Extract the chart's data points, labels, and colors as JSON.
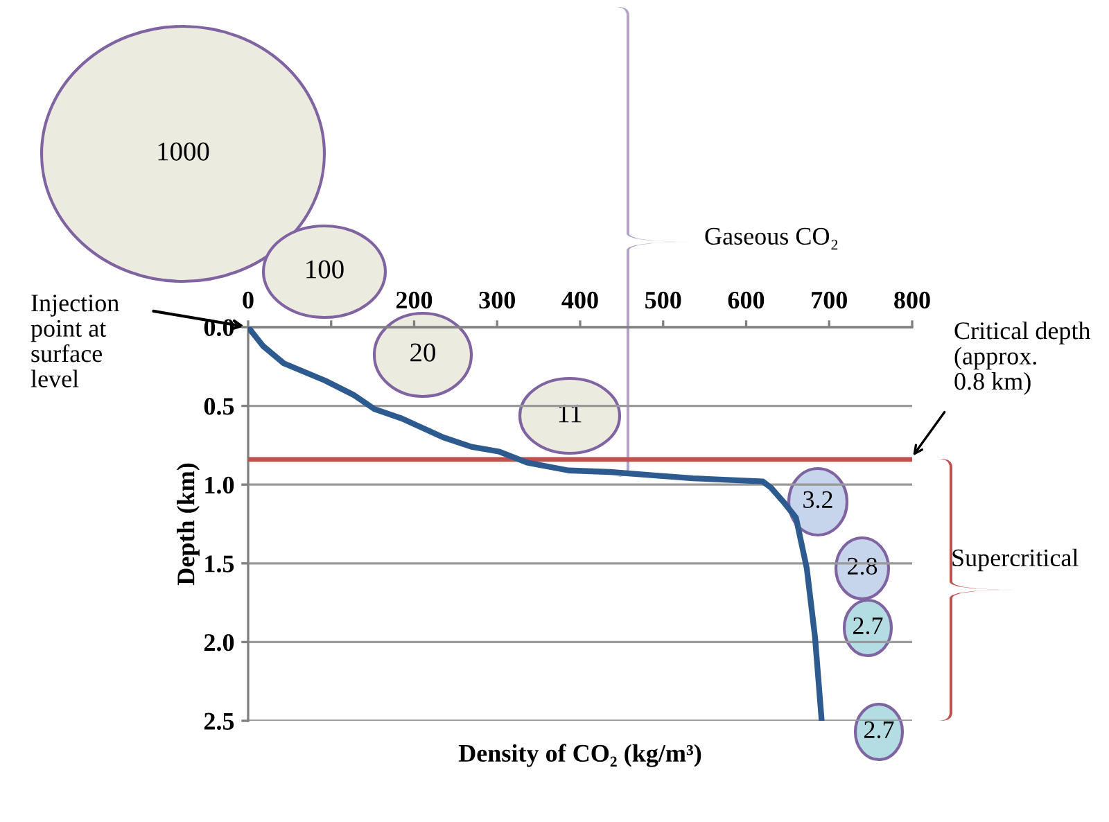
{
  "chart_data": {
    "type": "line",
    "xlabel": "Density of CO₂ (kg/m³)",
    "ylabel": "Depth (km)",
    "x": [
      0,
      18,
      43,
      93,
      127,
      152,
      185,
      235,
      269,
      302,
      336,
      386,
      436,
      486,
      536,
      620,
      630,
      645,
      660,
      673,
      683,
      691
    ],
    "series": [
      {
        "color": "#2e5b8f",
        "values": [
          0,
          0.12,
          0.23,
          0.34,
          0.43,
          0.52,
          0.58,
          0.7,
          0.76,
          0.79,
          0.86,
          0.91,
          0.92,
          0.94,
          0.96,
          0.98,
          1.02,
          1.11,
          1.21,
          1.53,
          1.97,
          2.5
        ]
      }
    ],
    "xlim": [
      0,
      800
    ],
    "xticks": [
      0,
      {
        "value": 100,
        "label": null
      },
      200,
      300,
      400,
      500,
      600,
      700,
      800
    ],
    "ylim": [
      2.5,
      0
    ],
    "yticks": [
      {
        "value": 0,
        "label": "0.0"
      },
      0.5,
      {
        "value": 1,
        "label": "1.0"
      },
      1.5,
      {
        "value": 2,
        "label": "2.0"
      },
      2.5
    ],
    "grid": "y",
    "marker": "none",
    "line_style": "solid",
    "ref_lines": [
      {
        "axis": "y",
        "value": 0.84,
        "label": "Critical depth\n(approx.\n0.8 km)",
        "color": "#c0504d"
      }
    ],
    "annotations": [
      "Injection\npoint at\nsurface\nlevel",
      "Gaseous CO₂",
      "Supercritical",
      "1000",
      "100",
      "20",
      "11",
      "3.2",
      "2.8",
      "2.7",
      "2.7"
    ]
  }
}
